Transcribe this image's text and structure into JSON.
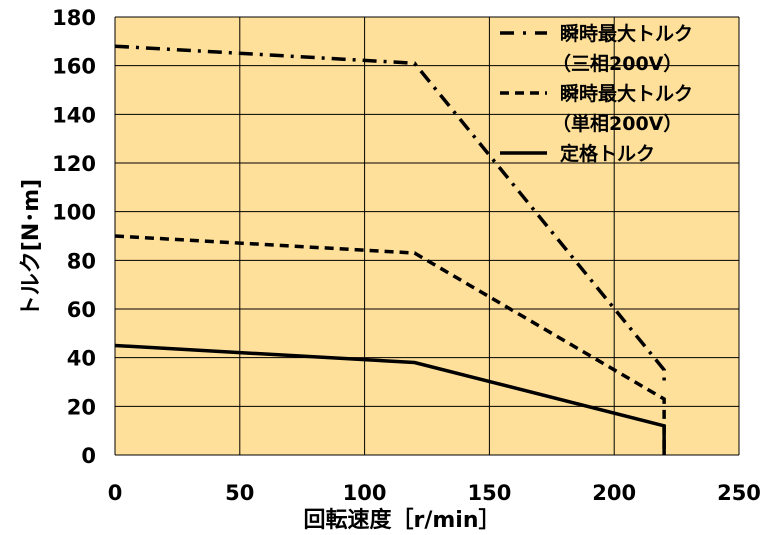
{
  "chart_data": {
    "type": "line",
    "xlabel": "回転速度［r/min］",
    "ylabel": "トルク[N･m]",
    "xlim": [
      0,
      250
    ],
    "ylim": [
      0,
      180
    ],
    "x_ticks": [
      "0",
      "50",
      "100",
      "150",
      "200",
      "250"
    ],
    "y_ticks": [
      "0",
      "20",
      "40",
      "60",
      "80",
      "100",
      "120",
      "140",
      "160",
      "180"
    ],
    "grid": true,
    "legend_position": "top-right",
    "colors": {
      "plot_background": "#FFE09A",
      "grid": "#000000",
      "line": "#000000"
    },
    "series": [
      {
        "name_lines": [
          "瞬時最大トルク",
          "（三相200V）"
        ],
        "style": "dash-dot",
        "points": [
          [
            0,
            168
          ],
          [
            120,
            161
          ],
          [
            220,
            35
          ],
          [
            220,
            29
          ]
        ]
      },
      {
        "name_lines": [
          "瞬時最大トルク",
          "（単相200V）"
        ],
        "style": "dashed",
        "points": [
          [
            0,
            90
          ],
          [
            120,
            83
          ],
          [
            220,
            23
          ],
          [
            220,
            0
          ]
        ]
      },
      {
        "name_lines": [
          "定格トルク"
        ],
        "style": "solid",
        "points": [
          [
            0,
            45
          ],
          [
            120,
            38
          ],
          [
            220,
            12
          ],
          [
            220,
            0
          ]
        ]
      }
    ]
  }
}
